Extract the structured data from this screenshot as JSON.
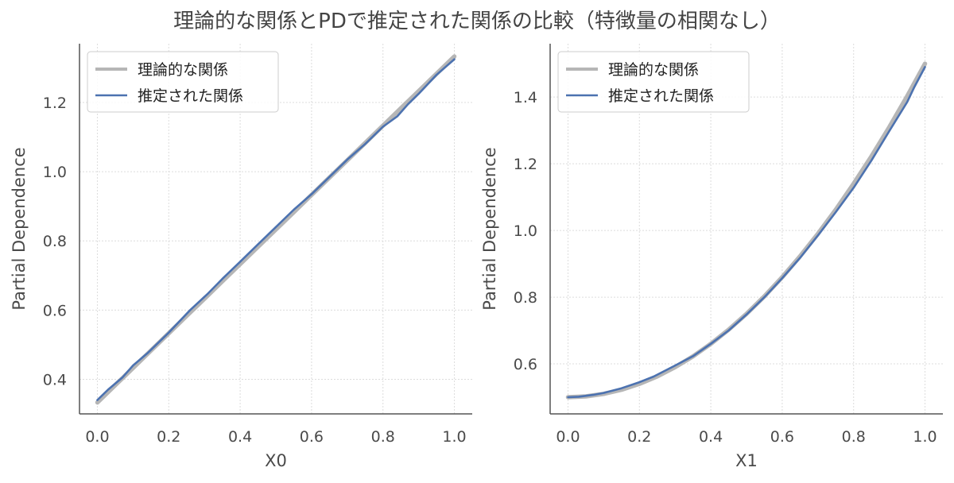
{
  "figure": {
    "title": "理論的な関係とPDで推定された関係の比較（特徴量の相関なし）"
  },
  "colors": {
    "theoretical": "#a9a9a9",
    "estimated": "#4c72b0",
    "grid": "#dcdcdc",
    "axis": "#555555"
  },
  "chart_data": [
    {
      "type": "line",
      "xlabel": "X0",
      "ylabel": "Partial Dependence",
      "xlim": [
        -0.05,
        1.05
      ],
      "ylim": [
        0.3,
        1.37
      ],
      "xticks": [
        0.0,
        0.2,
        0.4,
        0.6,
        0.8,
        1.0
      ],
      "xtick_labels": [
        "0.0",
        "0.2",
        "0.4",
        "0.6",
        "0.8",
        "1.0"
      ],
      "yticks": [
        0.4,
        0.6,
        0.8,
        1.0,
        1.2
      ],
      "ytick_labels": [
        "0.4",
        "0.6",
        "0.8",
        "1.0",
        "1.2"
      ],
      "grid": true,
      "legend": "upper-left",
      "series": [
        {
          "name": "理論的な関係",
          "x": [
            0.0,
            0.05,
            0.1,
            0.15,
            0.2,
            0.25,
            0.3,
            0.35,
            0.4,
            0.45,
            0.5,
            0.55,
            0.6,
            0.65,
            0.7,
            0.75,
            0.8,
            0.85,
            0.9,
            0.95,
            1.0
          ],
          "y": [
            0.333,
            0.383,
            0.433,
            0.483,
            0.533,
            0.583,
            0.633,
            0.683,
            0.733,
            0.783,
            0.833,
            0.883,
            0.933,
            0.983,
            1.033,
            1.083,
            1.133,
            1.183,
            1.233,
            1.283,
            1.333
          ]
        },
        {
          "name": "推定された関係",
          "x": [
            0.0,
            0.03,
            0.07,
            0.1,
            0.14,
            0.2,
            0.26,
            0.31,
            0.35,
            0.4,
            0.45,
            0.5,
            0.55,
            0.6,
            0.65,
            0.7,
            0.75,
            0.8,
            0.84,
            0.87,
            0.9,
            0.95,
            1.0
          ],
          "y": [
            0.34,
            0.37,
            0.405,
            0.44,
            0.475,
            0.535,
            0.6,
            0.648,
            0.69,
            0.74,
            0.79,
            0.84,
            0.89,
            0.935,
            0.985,
            1.035,
            1.08,
            1.13,
            1.16,
            1.195,
            1.225,
            1.28,
            1.325
          ]
        }
      ]
    },
    {
      "type": "line",
      "xlabel": "X1",
      "ylabel": "Partial Dependence",
      "xlim": [
        -0.05,
        1.05
      ],
      "ylim": [
        0.45,
        1.56
      ],
      "xticks": [
        0.0,
        0.2,
        0.4,
        0.6,
        0.8,
        1.0
      ],
      "xtick_labels": [
        "0.0",
        "0.2",
        "0.4",
        "0.6",
        "0.8",
        "1.0"
      ],
      "yticks": [
        0.6,
        0.8,
        1.0,
        1.2,
        1.4
      ],
      "ytick_labels": [
        "0.6",
        "0.8",
        "1.0",
        "1.2",
        "1.4"
      ],
      "grid": true,
      "legend": "upper-left",
      "series": [
        {
          "name": "理論的な関係",
          "x": [
            0.0,
            0.05,
            0.1,
            0.15,
            0.2,
            0.25,
            0.3,
            0.35,
            0.4,
            0.45,
            0.5,
            0.55,
            0.6,
            0.65,
            0.7,
            0.75,
            0.8,
            0.85,
            0.9,
            0.95,
            1.0
          ],
          "y": [
            0.5,
            0.5025,
            0.51,
            0.5225,
            0.54,
            0.5625,
            0.59,
            0.6225,
            0.66,
            0.7025,
            0.75,
            0.8025,
            0.86,
            0.9225,
            0.99,
            1.0625,
            1.14,
            1.2225,
            1.31,
            1.4025,
            1.5
          ]
        },
        {
          "name": "推定された関係",
          "x": [
            0.0,
            0.03,
            0.07,
            0.1,
            0.15,
            0.2,
            0.24,
            0.3,
            0.35,
            0.4,
            0.45,
            0.5,
            0.55,
            0.6,
            0.65,
            0.7,
            0.75,
            0.8,
            0.85,
            0.9,
            0.95,
            0.97,
            1.0
          ],
          "y": [
            0.5,
            0.5015,
            0.507,
            0.513,
            0.527,
            0.545,
            0.562,
            0.595,
            0.623,
            0.66,
            0.7,
            0.748,
            0.8,
            0.857,
            0.918,
            0.985,
            1.055,
            1.128,
            1.21,
            1.298,
            1.385,
            1.43,
            1.49
          ]
        }
      ]
    }
  ]
}
